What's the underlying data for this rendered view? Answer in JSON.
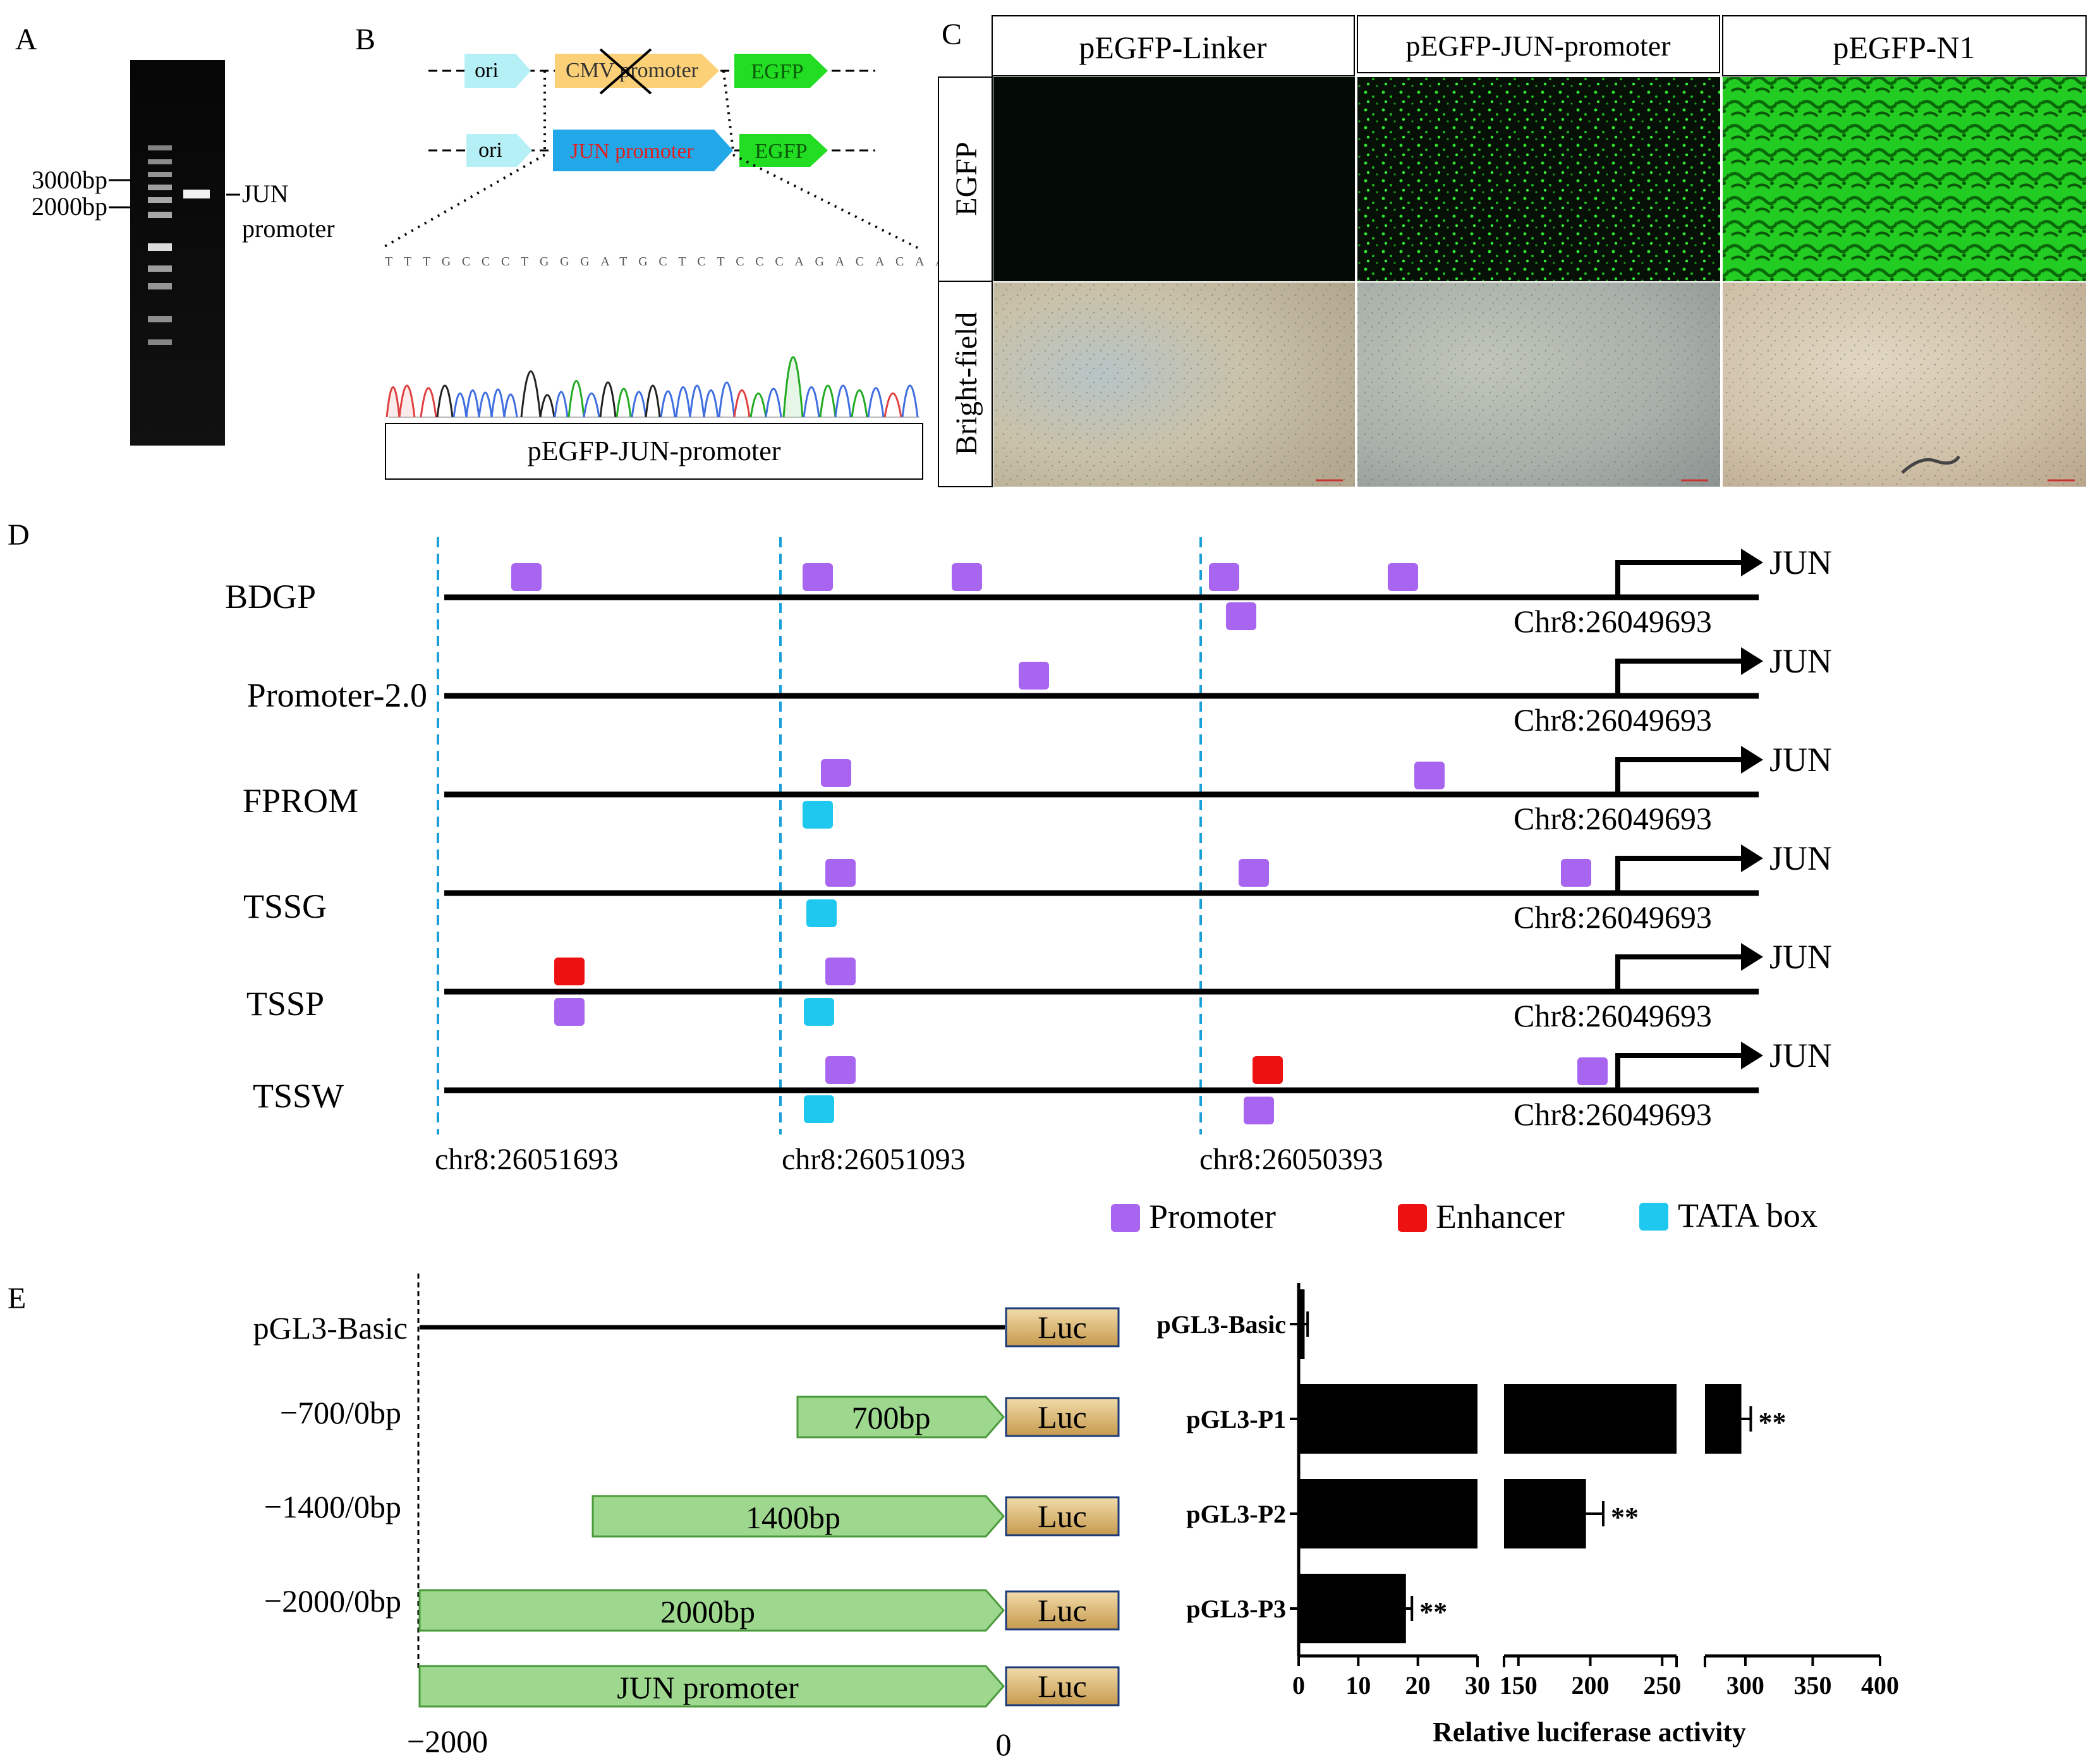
{
  "panel_labels": {
    "a": "A",
    "b": "B",
    "c": "C",
    "d": "D",
    "e": "E"
  },
  "panel_a": {
    "marker_3000": "3000bp",
    "marker_2000": "2000bp",
    "band_label_line1": "JUN",
    "band_label_line2": "promoter"
  },
  "panel_b": {
    "ori_label": "ori",
    "cmv_label": "CMV promoter",
    "egfp_label": "EGFP",
    "jun_promoter_label": "JUN promoter",
    "sequence": "TTTGCCCTGGGATGCTCTCCCAGACACAAGC",
    "caption": "pEGFP-JUN-promoter"
  },
  "panel_c": {
    "columns": [
      "pEGFP-Linker",
      "pEGFP-JUN-promoter",
      "pEGFP-N1"
    ],
    "rows": [
      "EGFP",
      "Bright-field"
    ]
  },
  "panel_d": {
    "tracks": [
      "BDGP",
      "Promoter-2.0",
      "FPROM",
      "TSSG",
      "TSSP",
      "TSSW"
    ],
    "gene": "JUN",
    "tss_coord": "Chr8:26049693",
    "boundaries": [
      "chr8:26051693",
      "chr8:26051093",
      "chr8:26050393"
    ],
    "legend": [
      {
        "label": "Promoter",
        "color": "#a865f0"
      },
      {
        "label": "Enhancer",
        "color": "#ee1111"
      },
      {
        "label": "TATA box",
        "color": "#1ec8ee"
      }
    ]
  },
  "panel_e": {
    "constructs": [
      {
        "label": "pGL3-Basic",
        "insert": ""
      },
      {
        "label": "−700/0bp",
        "insert": "700bp"
      },
      {
        "label": "−1400/0bp",
        "insert": "1400bp"
      },
      {
        "label": "−2000/0bp",
        "insert": "2000bp"
      },
      {
        "label": "",
        "insert": "JUN promoter"
      }
    ],
    "luc_label": "Luc",
    "axis_start": "−2000",
    "axis_end": "0"
  },
  "chart_data": {
    "type": "bar",
    "orientation": "horizontal",
    "categories": [
      "pGL3-Basic",
      "pGL3-P1",
      "pGL3-P2",
      "pGL3-P3"
    ],
    "values": [
      1,
      297,
      197,
      18
    ],
    "errors": [
      0.5,
      7,
      12,
      1
    ],
    "significance": [
      "",
      "**",
      "**",
      "**"
    ],
    "xlabel": "Relative luciferase activity",
    "broken_axis_segments": [
      [
        0,
        30
      ],
      [
        140,
        260
      ],
      [
        270,
        400
      ]
    ],
    "ticks": [
      [
        "0",
        "10",
        "20",
        "30"
      ],
      [
        "150",
        "200",
        "250"
      ],
      [
        "300",
        "350",
        "400"
      ]
    ]
  }
}
